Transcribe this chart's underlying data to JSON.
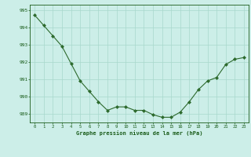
{
  "x": [
    0,
    1,
    2,
    3,
    4,
    5,
    6,
    7,
    8,
    9,
    10,
    11,
    12,
    13,
    14,
    15,
    16,
    17,
    18,
    19,
    20,
    21,
    22,
    23
  ],
  "y": [
    994.7,
    994.1,
    993.5,
    992.9,
    991.9,
    990.9,
    990.3,
    989.7,
    989.2,
    989.4,
    989.4,
    989.2,
    989.2,
    988.95,
    988.8,
    988.8,
    989.1,
    989.7,
    990.4,
    990.9,
    991.1,
    991.85,
    992.15,
    992.25
  ],
  "line_color": "#2d6a2d",
  "marker_color": "#2d6a2d",
  "bg_color": "#cceee8",
  "grid_color": "#a8d8cc",
  "xlabel": "Graphe pression niveau de la mer (hPa)",
  "xlabel_color": "#1a5c1a",
  "tick_color": "#1a5c1a",
  "ylim": [
    988.5,
    995.3
  ],
  "yticks": [
    989,
    990,
    991,
    992,
    993,
    994,
    995
  ],
  "xticks": [
    0,
    1,
    2,
    3,
    4,
    5,
    6,
    7,
    8,
    9,
    10,
    11,
    12,
    13,
    14,
    15,
    16,
    17,
    18,
    19,
    20,
    21,
    22,
    23
  ],
  "figwidth": 3.2,
  "figheight": 2.0,
  "dpi": 100
}
